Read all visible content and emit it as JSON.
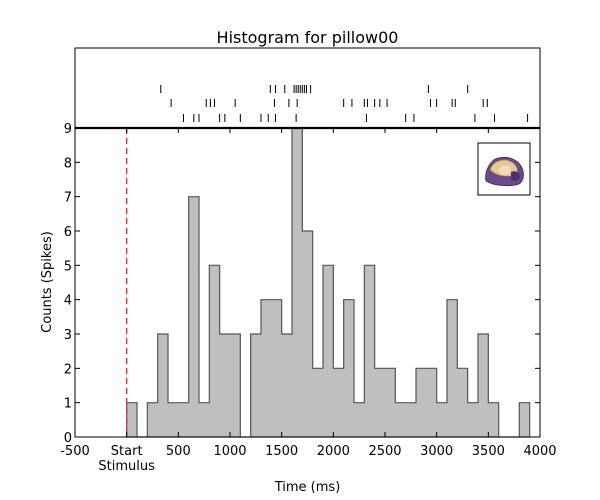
{
  "chart_data": {
    "type": "bar",
    "title": "Histogram for pillow00",
    "xlabel": "Time (ms)",
    "ylabel": "Counts (Spikes)",
    "xlim": [
      -500,
      4000
    ],
    "ylim": [
      0,
      9
    ],
    "xticks": [
      {
        "value": -500,
        "label": "-500"
      },
      {
        "value": 0,
        "label": "Start"
      },
      {
        "value": 500,
        "label": "500"
      },
      {
        "value": 1000,
        "label": "1000"
      },
      {
        "value": 1500,
        "label": "1500"
      },
      {
        "value": 2000,
        "label": "2000"
      },
      {
        "value": 2500,
        "label": "2500"
      },
      {
        "value": 3000,
        "label": "3000"
      },
      {
        "value": 3500,
        "label": "3500"
      },
      {
        "value": 4000,
        "label": "4000"
      }
    ],
    "yticks": [
      "0",
      "1",
      "2",
      "3",
      "4",
      "5",
      "6",
      "7",
      "8",
      "9"
    ],
    "stimulus_label": "Stimulus",
    "stimulus_time": 0,
    "bin_width": 100,
    "bins": [
      {
        "x": 0,
        "y": 1
      },
      {
        "x": 100,
        "y": 0
      },
      {
        "x": 200,
        "y": 1
      },
      {
        "x": 300,
        "y": 3
      },
      {
        "x": 400,
        "y": 1
      },
      {
        "x": 500,
        "y": 1
      },
      {
        "x": 600,
        "y": 7
      },
      {
        "x": 700,
        "y": 1
      },
      {
        "x": 800,
        "y": 5
      },
      {
        "x": 900,
        "y": 3
      },
      {
        "x": 1000,
        "y": 3
      },
      {
        "x": 1100,
        "y": 0
      },
      {
        "x": 1200,
        "y": 3
      },
      {
        "x": 1300,
        "y": 4
      },
      {
        "x": 1400,
        "y": 4
      },
      {
        "x": 1500,
        "y": 3
      },
      {
        "x": 1600,
        "y": 9
      },
      {
        "x": 1700,
        "y": 6
      },
      {
        "x": 1800,
        "y": 2
      },
      {
        "x": 1900,
        "y": 5
      },
      {
        "x": 2000,
        "y": 2
      },
      {
        "x": 2100,
        "y": 4
      },
      {
        "x": 2200,
        "y": 1
      },
      {
        "x": 2300,
        "y": 5
      },
      {
        "x": 2400,
        "y": 2
      },
      {
        "x": 2500,
        "y": 2
      },
      {
        "x": 2600,
        "y": 1
      },
      {
        "x": 2700,
        "y": 1
      },
      {
        "x": 2800,
        "y": 2
      },
      {
        "x": 2900,
        "y": 2
      },
      {
        "x": 3000,
        "y": 1
      },
      {
        "x": 3100,
        "y": 4
      },
      {
        "x": 3200,
        "y": 2
      },
      {
        "x": 3300,
        "y": 1
      },
      {
        "x": 3400,
        "y": 3
      },
      {
        "x": 3500,
        "y": 1
      },
      {
        "x": 3600,
        "y": 0
      },
      {
        "x": 3700,
        "y": 0
      },
      {
        "x": 3800,
        "y": 1
      }
    ],
    "raster_trials": [
      [
        330,
        1390,
        1440,
        1530,
        1620,
        1640,
        1660,
        1680,
        1700,
        1720,
        1740,
        1780,
        2920,
        3300
      ],
      [
        430,
        770,
        810,
        850,
        1050,
        1430,
        1570,
        1650,
        2100,
        2180,
        2300,
        2330,
        2400,
        2450,
        2520,
        2940,
        3000,
        3150,
        3180,
        3450,
        3490
      ],
      [
        550,
        650,
        700,
        900,
        950,
        1100,
        1300,
        1370,
        1440,
        1640,
        2320,
        2700,
        2780,
        3370,
        3560,
        3880
      ]
    ],
    "bar_fill": "#bfbfbf",
    "bar_edge": "#555555",
    "stimulus_line_color": "#e8282d",
    "grid": false,
    "legend": "none",
    "inset_icon": "pillow-thumbnail-icon"
  }
}
